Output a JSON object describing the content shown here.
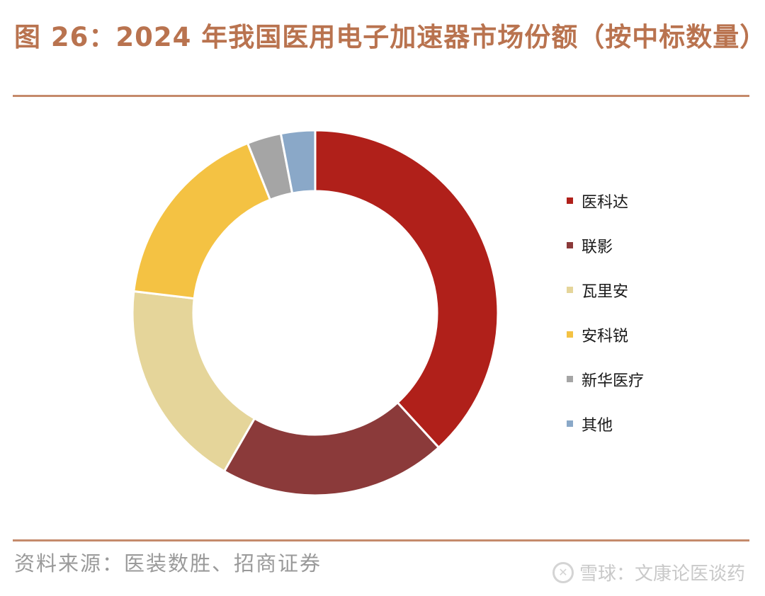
{
  "header": {
    "title": "图 26：2024 年我国医用电子加速器市场份额（按中标数量）"
  },
  "chart_data": {
    "type": "pie",
    "donut": true,
    "title": "",
    "slices": [
      {
        "label": "医科达",
        "value": 38,
        "color": "#B0201A"
      },
      {
        "label": "联影",
        "value": 20,
        "color": "#8B3A3A"
      },
      {
        "label": "瓦里安",
        "value": 18.5,
        "color": "#E5D59A"
      },
      {
        "label": "安科锐",
        "value": 17,
        "color": "#F4C243"
      },
      {
        "label": "新华医疗",
        "value": 3,
        "color": "#A5A5A5"
      },
      {
        "label": "其他",
        "value": 3,
        "color": "#8AA8C8"
      }
    ],
    "legend_position": "right"
  },
  "footer": {
    "source": "资料来源：医装数胜、招商证券",
    "watermark": "雪球：文康论医谈药"
  }
}
